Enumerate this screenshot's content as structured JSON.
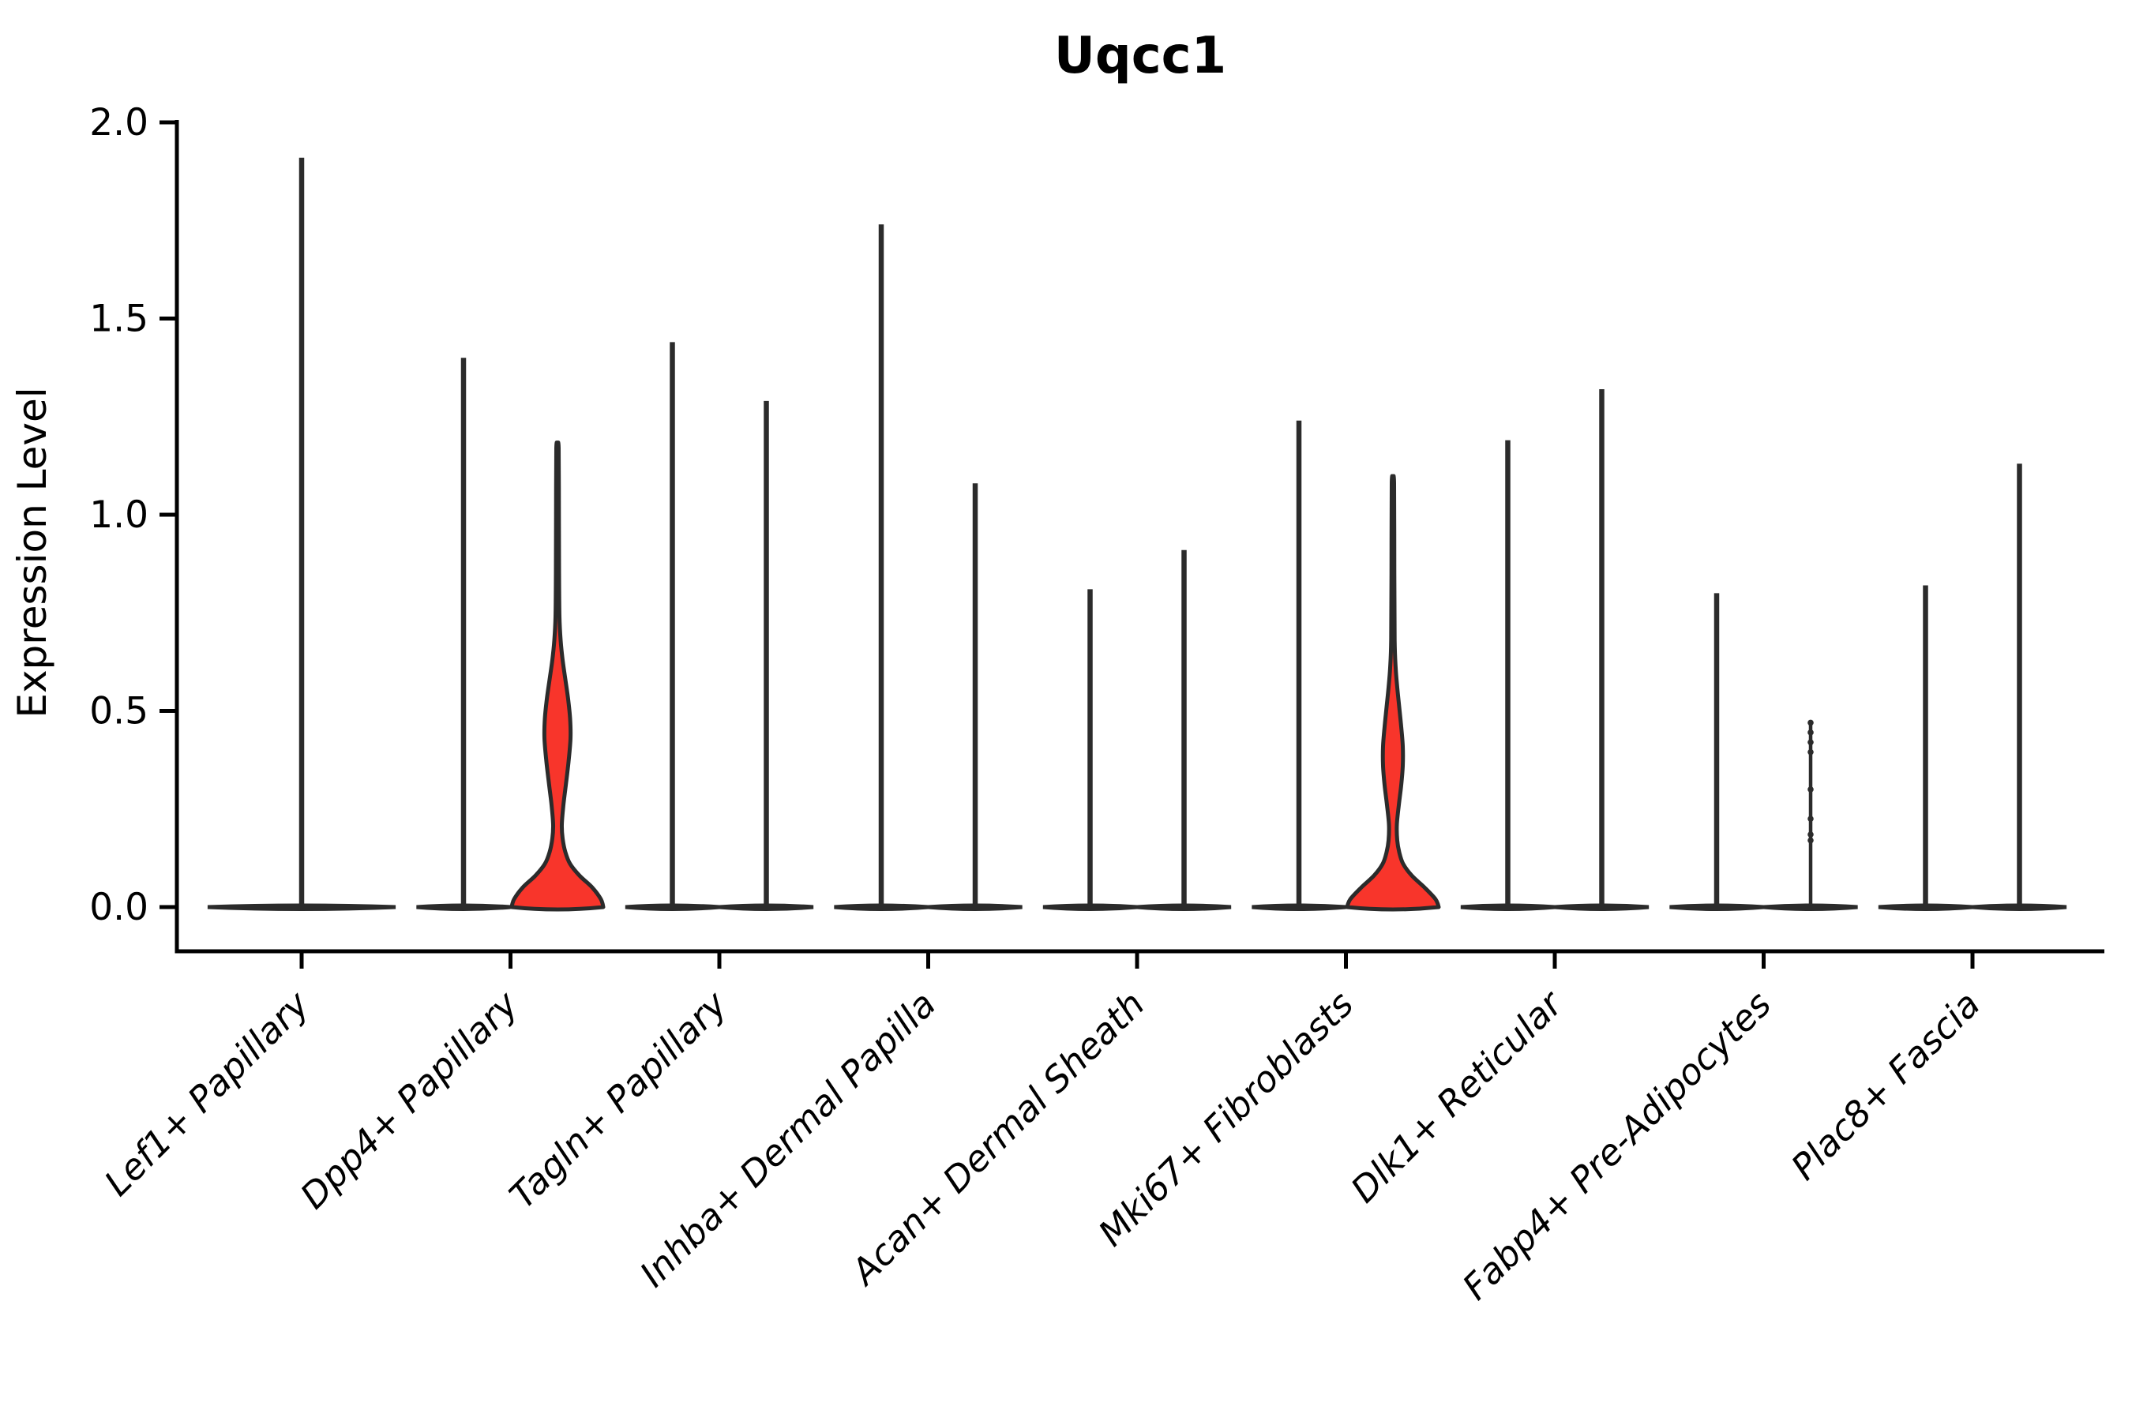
{
  "chart_data": {
    "type": "violin",
    "title": "Uqcc1",
    "ylabel": "Expression Level",
    "ylim": [
      0,
      2
    ],
    "ytick_values": [
      0.0,
      0.5,
      1.0,
      1.5,
      2.0
    ],
    "ytick_labels": [
      "0.0",
      "0.5",
      "1.0",
      "1.5",
      "2.0"
    ],
    "grid": false,
    "legend": "none",
    "x_tick_label_style": "italic, rotated 45 degrees",
    "categories": [
      "Lef1+ Papillary",
      "Dpp4+ Papillary",
      "Tagln+ Papillary",
      "Inhba+ Dermal Papilla",
      "Acan+ Dermal Sheath",
      "Mki67+ Fibroblasts",
      "Dlk1+ Reticular",
      "Fabp4+ Pre-Adipocytes",
      "Plac8+ Fascia"
    ],
    "violins": [
      {
        "category_index": 0,
        "category": "Lef1+ Papillary",
        "slot": "center",
        "max_expression": 1.91,
        "style": "line"
      },
      {
        "category_index": 1,
        "category": "Dpp4+ Papillary",
        "slot": "left",
        "max_expression": 1.4,
        "style": "line"
      },
      {
        "category_index": 1,
        "category": "Dpp4+ Papillary",
        "slot": "right",
        "max_expression": 1.17,
        "style": "filled",
        "density_profile": [
          [
            0.0,
            58
          ],
          [
            0.02,
            55
          ],
          [
            0.05,
            44
          ],
          [
            0.08,
            28
          ],
          [
            0.11,
            16
          ],
          [
            0.14,
            10
          ],
          [
            0.175,
            6.5
          ],
          [
            0.21,
            5.5
          ],
          [
            0.26,
            7.5
          ],
          [
            0.31,
            10.5
          ],
          [
            0.37,
            14
          ],
          [
            0.43,
            16.5
          ],
          [
            0.48,
            16
          ],
          [
            0.53,
            13.5
          ],
          [
            0.58,
            10
          ],
          [
            0.63,
            6.5
          ],
          [
            0.68,
            4
          ],
          [
            0.74,
            2.5
          ],
          [
            0.85,
            2
          ],
          [
            1.0,
            1.8
          ],
          [
            1.17,
            1.5
          ]
        ]
      },
      {
        "category_index": 2,
        "category": "Tagln+ Papillary",
        "slot": "left",
        "max_expression": 1.44,
        "style": "line"
      },
      {
        "category_index": 2,
        "category": "Tagln+ Papillary",
        "slot": "right",
        "max_expression": 1.29,
        "style": "line"
      },
      {
        "category_index": 3,
        "category": "Inhba+ Dermal Papilla",
        "slot": "left",
        "max_expression": 1.74,
        "style": "line"
      },
      {
        "category_index": 3,
        "category": "Inhba+ Dermal Papilla",
        "slot": "right",
        "max_expression": 1.08,
        "style": "line"
      },
      {
        "category_index": 4,
        "category": "Acan+ Dermal Sheath",
        "slot": "left",
        "max_expression": 0.81,
        "style": "line"
      },
      {
        "category_index": 4,
        "category": "Acan+ Dermal Sheath",
        "slot": "right",
        "max_expression": 0.91,
        "style": "line"
      },
      {
        "category_index": 5,
        "category": "Mki67+ Fibroblasts",
        "slot": "left",
        "max_expression": 1.24,
        "style": "line"
      },
      {
        "category_index": 5,
        "category": "Mki67+ Fibroblasts",
        "slot": "right",
        "max_expression": 1.08,
        "style": "filled",
        "density_profile": [
          [
            0.0,
            58
          ],
          [
            0.02,
            54
          ],
          [
            0.05,
            40
          ],
          [
            0.08,
            24
          ],
          [
            0.11,
            13
          ],
          [
            0.14,
            8
          ],
          [
            0.17,
            5.5
          ],
          [
            0.21,
            5
          ],
          [
            0.26,
            7.5
          ],
          [
            0.31,
            10.5
          ],
          [
            0.36,
            12.5
          ],
          [
            0.41,
            12.5
          ],
          [
            0.46,
            10.5
          ],
          [
            0.51,
            8
          ],
          [
            0.56,
            5.5
          ],
          [
            0.61,
            3.5
          ],
          [
            0.68,
            2.2
          ],
          [
            0.85,
            1.8
          ],
          [
            1.08,
            1.5
          ]
        ]
      },
      {
        "category_index": 6,
        "category": "Dlk1+ Reticular",
        "slot": "left",
        "max_expression": 1.19,
        "style": "line"
      },
      {
        "category_index": 6,
        "category": "Dlk1+ Reticular",
        "slot": "right",
        "max_expression": 1.32,
        "style": "line"
      },
      {
        "category_index": 7,
        "category": "Fabp4+ Pre-Adipocytes",
        "slot": "left",
        "max_expression": 0.8,
        "style": "line"
      },
      {
        "category_index": 7,
        "category": "Fabp4+ Pre-Adipocytes",
        "slot": "right",
        "max_expression": 0.47,
        "style": "dotted",
        "dot_values": [
          0.47,
          0.445,
          0.42,
          0.395,
          0.3,
          0.225,
          0.185,
          0.17
        ]
      },
      {
        "category_index": 8,
        "category": "Plac8+ Fascia",
        "slot": "left",
        "max_expression": 0.82,
        "style": "line"
      },
      {
        "category_index": 8,
        "category": "Plac8+ Fascia",
        "slot": "right",
        "max_expression": 1.13,
        "style": "line"
      }
    ],
    "colors": {
      "violin_fill_red": "#f8352b",
      "violin_outline": "#2b2b2b",
      "axis": "#000000",
      "background": "#ffffff"
    }
  }
}
